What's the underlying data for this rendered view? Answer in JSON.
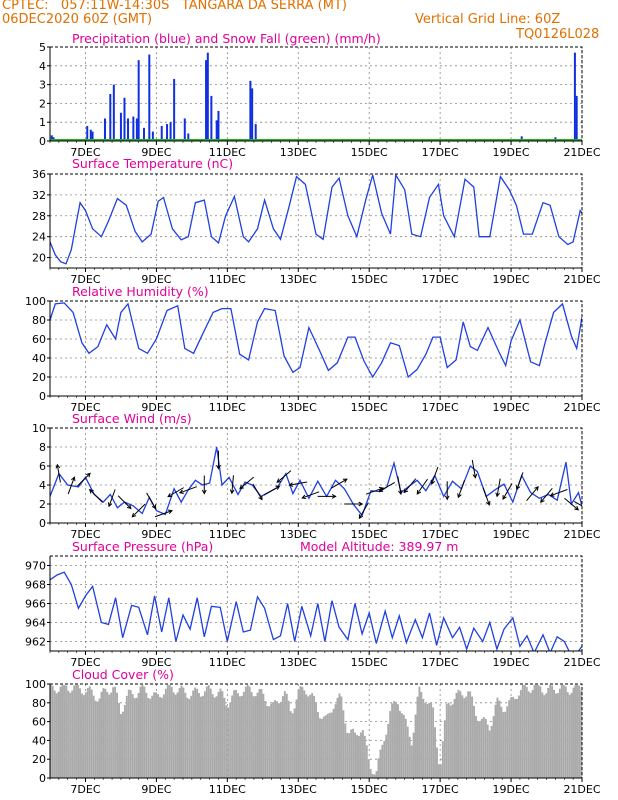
{
  "header": {
    "line1_left": "CPTEC:   057:11W-14:30S   TANGARA DA SERRA (MT)",
    "line2_left": "06DEC2020 60Z (GMT)",
    "line2_right": "Vertical Grid Line: 60Z",
    "line3_right": "TQ0126L028"
  },
  "x_axis": {
    "ticks": [
      {
        "day": 7,
        "label": "7DEC"
      },
      {
        "day": 9,
        "label": "9DEC"
      },
      {
        "day": 11,
        "label": "11DEC"
      },
      {
        "day": 13,
        "label": "13DEC"
      },
      {
        "day": 15,
        "label": "15DEC"
      },
      {
        "day": 17,
        "label": "17DEC"
      },
      {
        "day": 19,
        "label": "19DEC"
      },
      {
        "day": 21,
        "label": "21DEC"
      }
    ]
  },
  "colors": {
    "title": "#e0009a",
    "header": "#e07000",
    "line": "#2040e0",
    "precip": "#1030e0",
    "snow": "#20b020",
    "cloud": "#aaaaaa",
    "grid": "#888888",
    "wind_arrow": "#000000"
  },
  "chart_data": [
    {
      "type": "bar",
      "title": "Precipitation (blue) and Snow Fall (green) (mm/h)",
      "ylim": [
        0,
        5
      ],
      "yticks": [
        0,
        1,
        2,
        3,
        4,
        5
      ],
      "series": [
        {
          "name": "Precipitation",
          "x": [
            6.05,
            6.1,
            7.05,
            7.15,
            7.2,
            7.55,
            7.7,
            7.8,
            8.0,
            8.1,
            8.2,
            8.35,
            8.45,
            8.5,
            8.65,
            8.8,
            8.9,
            9.15,
            9.3,
            9.4,
            9.5,
            9.8,
            9.9,
            10.4,
            10.45,
            10.55,
            10.7,
            10.75,
            11.65,
            11.7,
            11.8,
            19.3,
            20.25,
            20.8,
            20.85
          ],
          "values": [
            0.3,
            0.2,
            0.8,
            0.6,
            0.5,
            1.2,
            2.5,
            3.0,
            1.5,
            2.3,
            1.2,
            1.3,
            1.2,
            4.3,
            0.7,
            4.6,
            0.5,
            0.8,
            0.9,
            1.0,
            3.3,
            1.2,
            0.4,
            4.3,
            4.7,
            2.4,
            1.1,
            1.6,
            3.2,
            2.8,
            0.9,
            0.25,
            0.2,
            4.7,
            2.4
          ]
        },
        {
          "name": "Snow Fall",
          "x": [],
          "values": []
        }
      ]
    },
    {
      "type": "line",
      "title": "Surface Temperature (nC)",
      "ylim": [
        18,
        36
      ],
      "yticks": [
        20,
        24,
        28,
        32,
        36
      ],
      "x": [
        6.0,
        6.15,
        6.3,
        6.45,
        6.6,
        6.75,
        6.85,
        7.0,
        7.2,
        7.45,
        7.65,
        7.9,
        8.15,
        8.4,
        8.6,
        8.85,
        9.05,
        9.2,
        9.45,
        9.7,
        9.9,
        10.1,
        10.35,
        10.55,
        10.75,
        10.95,
        11.2,
        11.45,
        11.6,
        11.85,
        12.05,
        12.3,
        12.5,
        12.75,
        12.95,
        13.2,
        13.5,
        13.7,
        13.95,
        14.15,
        14.4,
        14.65,
        14.9,
        15.1,
        15.35,
        15.6,
        15.75,
        16.0,
        16.2,
        16.45,
        16.7,
        16.95,
        17.1,
        17.4,
        17.7,
        17.95,
        18.1,
        18.4,
        18.7,
        18.95,
        19.15,
        19.35,
        19.6,
        19.9,
        20.1,
        20.35,
        20.6,
        20.75,
        20.95,
        21.0
      ],
      "values": [
        23,
        20.5,
        19.2,
        18.8,
        21.5,
        27,
        30.5,
        29,
        25.5,
        24,
        27,
        31.3,
        30,
        25,
        23,
        24.5,
        30.8,
        31.5,
        25.5,
        23.4,
        24,
        30.5,
        31,
        24,
        22.8,
        28,
        31.7,
        24,
        23,
        25.5,
        31,
        25.5,
        23.5,
        30,
        35.5,
        34,
        24.5,
        23.5,
        33.5,
        35.2,
        28,
        24,
        31,
        35.8,
        28.5,
        24.5,
        35.8,
        33,
        24.5,
        24,
        31.5,
        34,
        28,
        24,
        35,
        33.5,
        24,
        24,
        35.5,
        33,
        30,
        24.5,
        24.5,
        30.5,
        30,
        24,
        22.5,
        23,
        29,
        28.5
      ]
    },
    {
      "type": "line",
      "title": "Relative Humidity (%)",
      "ylim": [
        0,
        100
      ],
      "yticks": [
        0,
        20,
        40,
        60,
        80,
        100
      ],
      "x": [
        6.0,
        6.15,
        6.4,
        6.65,
        6.9,
        7.1,
        7.35,
        7.6,
        7.85,
        8.0,
        8.2,
        8.5,
        8.75,
        9.0,
        9.3,
        9.6,
        9.8,
        10.05,
        10.3,
        10.6,
        10.85,
        11.1,
        11.35,
        11.6,
        11.85,
        12.05,
        12.35,
        12.6,
        12.85,
        13.05,
        13.3,
        13.6,
        13.85,
        14.1,
        14.4,
        14.6,
        14.85,
        15.1,
        15.35,
        15.6,
        15.85,
        16.1,
        16.35,
        16.6,
        16.8,
        17.0,
        17.2,
        17.45,
        17.65,
        17.85,
        18.05,
        18.35,
        18.65,
        18.85,
        19.0,
        19.25,
        19.55,
        19.8,
        19.95,
        20.2,
        20.45,
        20.7,
        20.85,
        21.0
      ],
      "values": [
        80,
        97,
        98,
        88,
        56,
        45,
        52,
        75,
        60,
        88,
        97,
        50,
        45,
        60,
        90,
        95,
        50,
        45,
        65,
        88,
        92,
        92,
        44,
        38,
        78,
        92,
        90,
        42,
        25,
        30,
        72,
        48,
        27,
        35,
        62,
        62,
        37,
        20,
        35,
        56,
        53,
        20,
        28,
        44,
        62,
        62,
        30,
        38,
        78,
        52,
        48,
        72,
        47,
        32,
        58,
        80,
        36,
        32,
        55,
        88,
        97,
        63,
        50,
        83
      ]
    },
    {
      "type": "line",
      "title": "Surface Wind (m/s)",
      "ylim": [
        0,
        10
      ],
      "yticks": [
        0,
        2,
        4,
        6,
        8,
        10
      ],
      "x": [
        6.0,
        6.25,
        6.5,
        6.8,
        7.0,
        7.25,
        7.5,
        7.7,
        7.9,
        8.1,
        8.35,
        8.6,
        8.8,
        9.0,
        9.25,
        9.5,
        9.7,
        9.9,
        10.1,
        10.3,
        10.5,
        10.7,
        10.85,
        11.05,
        11.3,
        11.5,
        11.7,
        11.95,
        12.15,
        12.4,
        12.65,
        12.85,
        13.05,
        13.3,
        13.55,
        13.8,
        14.05,
        14.3,
        14.55,
        14.8,
        15.05,
        15.3,
        15.5,
        15.7,
        15.9,
        16.1,
        16.35,
        16.6,
        16.85,
        17.1,
        17.35,
        17.6,
        17.85,
        18.05,
        18.3,
        18.55,
        18.8,
        19.05,
        19.3,
        19.55,
        19.8,
        20.05,
        20.3,
        20.55,
        20.7,
        20.9,
        21.0
      ],
      "values": [
        2.8,
        5.2,
        4.0,
        3.8,
        4.8,
        3.0,
        2.2,
        3.0,
        1.6,
        2.2,
        1.8,
        1.0,
        2.7,
        1.3,
        0.9,
        3.6,
        2.2,
        3.5,
        4.5,
        4.0,
        4.2,
        8.0,
        4.0,
        4.8,
        3.0,
        4.3,
        4.0,
        2.8,
        3.2,
        3.7,
        5.2,
        3.1,
        4.5,
        2.6,
        4.4,
        2.8,
        4.5,
        3.6,
        2.0,
        0.8,
        3.4,
        3.3,
        3.8,
        6.3,
        3.2,
        3.8,
        4.5,
        3.4,
        5.0,
        2.8,
        4.4,
        3.6,
        6.0,
        5.4,
        2.8,
        3.5,
        4.1,
        2.2,
        5.0,
        3.2,
        2.6,
        3.0,
        2.4,
        6.4,
        2.0,
        3.2,
        1.8
      ],
      "arrows": [
        {
          "x": 6.25,
          "dir": 350
        },
        {
          "x": 6.6,
          "dir": 20
        },
        {
          "x": 6.95,
          "dir": 45
        },
        {
          "x": 7.3,
          "dir": 315
        },
        {
          "x": 7.75,
          "dir": 200
        },
        {
          "x": 8.1,
          "dir": 135
        },
        {
          "x": 8.5,
          "dir": 225
        },
        {
          "x": 8.85,
          "dir": 150
        },
        {
          "x": 9.2,
          "dir": 70
        },
        {
          "x": 9.55,
          "dir": 240
        },
        {
          "x": 9.9,
          "dir": 250
        },
        {
          "x": 10.35,
          "dir": 180
        },
        {
          "x": 10.75,
          "dir": 180
        },
        {
          "x": 11.15,
          "dir": 185
        },
        {
          "x": 11.55,
          "dir": 230
        },
        {
          "x": 11.85,
          "dir": 150
        },
        {
          "x": 12.25,
          "dir": 60
        },
        {
          "x": 12.6,
          "dir": 230
        },
        {
          "x": 13.0,
          "dir": 260
        },
        {
          "x": 13.35,
          "dir": 250
        },
        {
          "x": 13.8,
          "dir": 90
        },
        {
          "x": 14.15,
          "dir": 60
        },
        {
          "x": 14.55,
          "dir": 90
        },
        {
          "x": 14.85,
          "dir": 210
        },
        {
          "x": 15.15,
          "dir": 70
        },
        {
          "x": 15.5,
          "dir": 240
        },
        {
          "x": 15.85,
          "dir": 170
        },
        {
          "x": 16.15,
          "dir": 220
        },
        {
          "x": 16.5,
          "dir": 215
        },
        {
          "x": 16.85,
          "dir": 200
        },
        {
          "x": 17.2,
          "dir": 180
        },
        {
          "x": 17.6,
          "dir": 200
        },
        {
          "x": 17.95,
          "dir": 170
        },
        {
          "x": 18.3,
          "dir": 160
        },
        {
          "x": 18.65,
          "dir": 190
        },
        {
          "x": 18.9,
          "dir": 210
        },
        {
          "x": 19.25,
          "dir": 200
        },
        {
          "x": 19.6,
          "dir": 40
        },
        {
          "x": 20.0,
          "dir": 220
        },
        {
          "x": 20.35,
          "dir": 250
        },
        {
          "x": 20.7,
          "dir": 130
        },
        {
          "x": 21.0,
          "dir": 120
        }
      ]
    },
    {
      "type": "line",
      "title": "Surface Pressure (hPa)",
      "annotation": "Model Altitude: 389.97 m",
      "ylim": [
        961,
        971
      ],
      "yticks": [
        962,
        964,
        966,
        968,
        970
      ],
      "x": [
        6.0,
        6.2,
        6.4,
        6.6,
        6.8,
        7.0,
        7.2,
        7.45,
        7.65,
        7.85,
        8.05,
        8.3,
        8.5,
        8.75,
        8.95,
        9.15,
        9.35,
        9.55,
        9.75,
        9.95,
        10.15,
        10.35,
        10.55,
        10.8,
        11.0,
        11.25,
        11.45,
        11.65,
        11.85,
        12.05,
        12.3,
        12.5,
        12.7,
        12.9,
        13.1,
        13.35,
        13.55,
        13.75,
        13.95,
        14.15,
        14.4,
        14.6,
        14.8,
        15.0,
        15.2,
        15.45,
        15.65,
        15.85,
        16.05,
        16.3,
        16.5,
        16.7,
        16.9,
        17.1,
        17.35,
        17.55,
        17.75,
        17.95,
        18.2,
        18.4,
        18.6,
        18.8,
        19.05,
        19.25,
        19.45,
        19.65,
        19.9,
        20.1,
        20.3,
        20.5,
        20.7,
        20.9,
        21.0
      ],
      "values": [
        968.5,
        969.0,
        969.3,
        968.0,
        965.5,
        966.8,
        967.8,
        964.0,
        963.8,
        966.6,
        962.4,
        965.8,
        965.6,
        962.7,
        966.8,
        963.0,
        966.6,
        962.0,
        964.8,
        963.3,
        966.6,
        962.5,
        965.7,
        965.6,
        962.0,
        966.2,
        963.0,
        963.2,
        966.7,
        965.5,
        962.2,
        962.6,
        966.0,
        962.0,
        965.7,
        962.6,
        966.0,
        962.0,
        966.3,
        963.5,
        962.2,
        966.0,
        962.8,
        965.0,
        961.8,
        965.2,
        962.4,
        964.7,
        961.9,
        964.3,
        962.4,
        965.0,
        961.6,
        964.5,
        962.4,
        963.5,
        961.2,
        963.4,
        962.0,
        964.0,
        961.2,
        963.3,
        964.5,
        961.5,
        962.6,
        960.8,
        962.7,
        960.8,
        962.5,
        962.0,
        960.5,
        961.0,
        961.5
      ]
    },
    {
      "type": "bar",
      "title": "Cloud Cover (%)",
      "ylim": [
        0,
        100
      ],
      "yticks": [
        0,
        20,
        40,
        60,
        80,
        100
      ],
      "x": [
        6.0,
        6.4,
        6.8,
        7.1,
        7.4,
        7.6,
        7.8,
        8.0,
        8.2,
        8.4,
        8.6,
        8.8,
        9.0,
        9.2,
        9.4,
        9.6,
        9.8,
        10.0,
        10.2,
        10.5,
        10.8,
        11.0,
        11.2,
        11.4,
        11.6,
        11.8,
        12.0,
        12.3,
        12.6,
        12.8,
        13.0,
        13.2,
        13.4,
        13.6,
        13.8,
        14.0,
        14.2,
        14.4,
        14.6,
        14.8,
        15.0,
        15.2,
        15.4,
        15.6,
        15.8,
        16.0,
        16.2,
        16.4,
        16.6,
        16.8,
        17.0,
        17.2,
        17.4,
        17.6,
        17.8,
        18.0,
        18.2,
        18.4,
        18.6,
        18.8,
        19.0,
        19.2,
        19.4,
        19.6,
        19.8,
        20.0,
        20.2,
        20.4,
        20.6,
        20.8,
        21.0
      ],
      "values": [
        95,
        97,
        96,
        92,
        85,
        94,
        96,
        72,
        88,
        90,
        95,
        90,
        85,
        93,
        96,
        94,
        91,
        89,
        92,
        93,
        90,
        80,
        88,
        93,
        94,
        92,
        88,
        75,
        92,
        70,
        90,
        96,
        85,
        70,
        60,
        80,
        85,
        50,
        45,
        55,
        15,
        5,
        40,
        70,
        85,
        60,
        40,
        92,
        85,
        70,
        10,
        80,
        85,
        90,
        92,
        70,
        60,
        55,
        80,
        75,
        80,
        92,
        95,
        97,
        98,
        92,
        95,
        96,
        94,
        96,
        97
      ]
    }
  ]
}
